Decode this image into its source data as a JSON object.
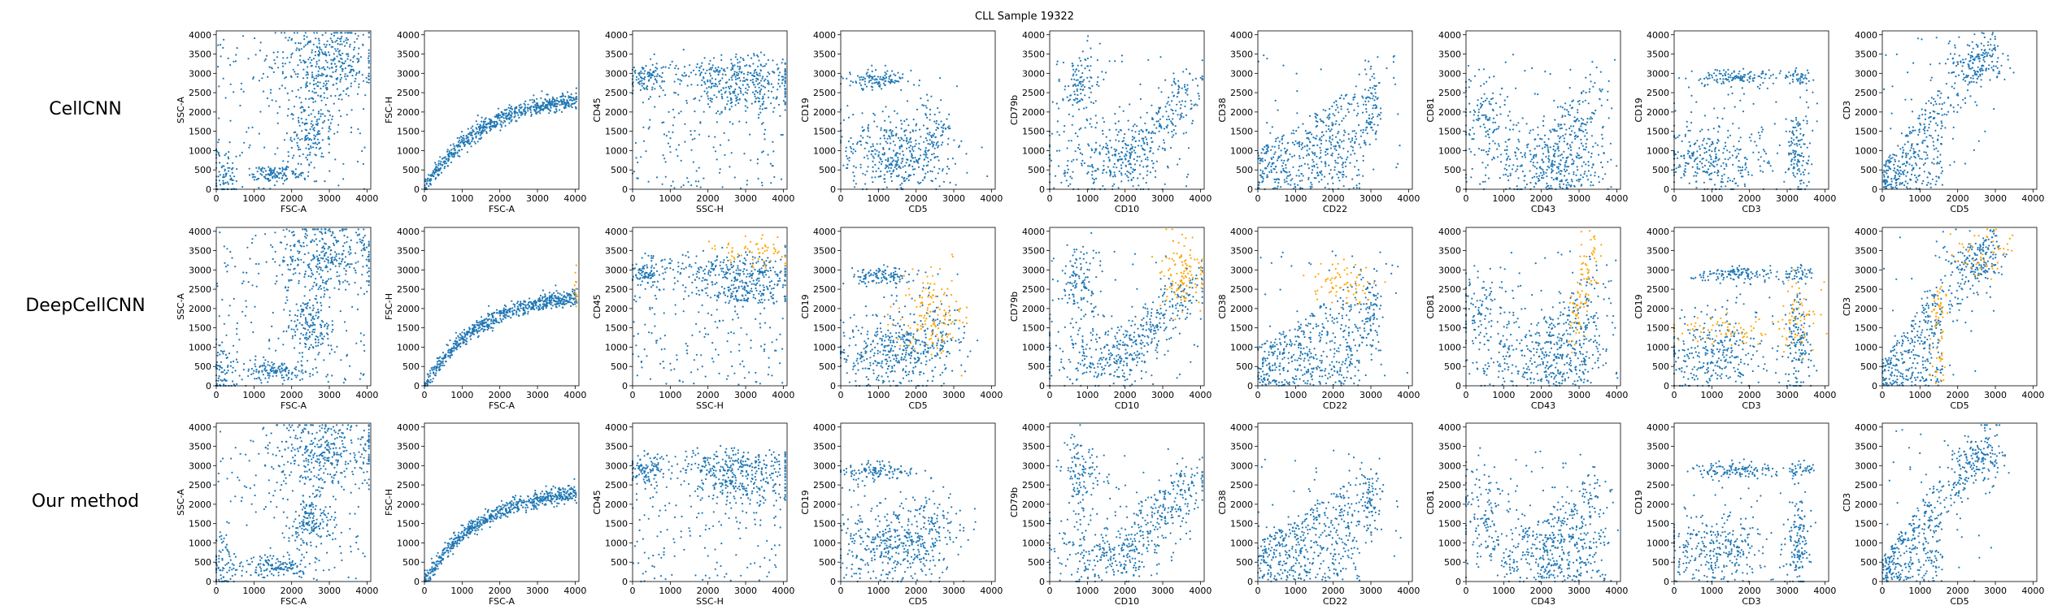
{
  "figure": {
    "title": "CLL Sample 19322",
    "colors": {
      "base": "#1f77b4",
      "highlight": "#ffa500"
    }
  },
  "chart_data": {
    "type": "scatter",
    "title": "CLL Sample 19322",
    "rows": [
      "CellCNN",
      "DeepCellCNN",
      "Our method"
    ],
    "ticks": [
      0,
      500,
      1000,
      1500,
      2000,
      2500,
      3000,
      3500,
      4000
    ],
    "xticks": [
      0,
      1000,
      2000,
      3000,
      4000
    ],
    "xlim": [
      0,
      4100
    ],
    "ylim": [
      0,
      4100
    ],
    "grid": false,
    "panels": [
      {
        "xlabel": "FSC-A",
        "ylabel": "SSC-A",
        "pattern": "fsc_ssc"
      },
      {
        "xlabel": "FSC-A",
        "ylabel": "FSC-H",
        "pattern": "fsc_fsch"
      },
      {
        "xlabel": "SSC-H",
        "ylabel": "CD45",
        "pattern": "ssc_cd45"
      },
      {
        "xlabel": "CD5",
        "ylabel": "CD19",
        "pattern": "cd5_cd19"
      },
      {
        "xlabel": "CD10",
        "ylabel": "CD79b",
        "pattern": "cd10_cd79b"
      },
      {
        "xlabel": "CD22",
        "ylabel": "CD38",
        "pattern": "cd22_cd38"
      },
      {
        "xlabel": "CD43",
        "ylabel": "CD81",
        "pattern": "cd43_cd81"
      },
      {
        "xlabel": "CD3",
        "ylabel": "CD19",
        "pattern": "cd3_cd19"
      },
      {
        "xlabel": "CD5",
        "ylabel": "CD3",
        "pattern": "cd5_cd3"
      }
    ],
    "highlight_row": 1
  }
}
